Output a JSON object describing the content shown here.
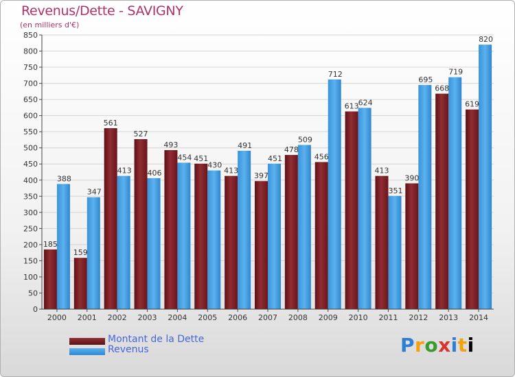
{
  "title": "Revenus/Dette - SAVIGNY",
  "subtitle": "(en milliers d'€)",
  "legend": {
    "debt_label": "Montant de la Dette",
    "revenue_label": "Revenus"
  },
  "logo": {
    "text": "Proxiti"
  },
  "colors": {
    "debt": "#7a1c24",
    "debt_light": "#8f2e33",
    "revenue": "#4aa3e6",
    "revenue_dark": "#2e86cf",
    "title": "#b0306a",
    "legend_text": "#4466dd"
  },
  "chart_data": {
    "type": "bar",
    "title": "Revenus/Dette - SAVIGNY",
    "ylabel": "(en milliers d'€)",
    "xlabel": "",
    "ylim": [
      0,
      850
    ],
    "ytick_step": 50,
    "grid": true,
    "legend_position": "bottom-left",
    "categories": [
      "2000",
      "2001",
      "2002",
      "2003",
      "2004",
      "2005",
      "2006",
      "2007",
      "2008",
      "2009",
      "2010",
      "2011",
      "2012",
      "2013",
      "2014"
    ],
    "series": [
      {
        "name": "Montant de la Dette",
        "values": [
          185,
          159,
          561,
          527,
          493,
          451,
          413,
          397,
          478,
          456,
          613,
          413,
          390,
          668,
          619
        ]
      },
      {
        "name": "Revenus",
        "values": [
          388,
          347,
          413,
          406,
          454,
          430,
          491,
          451,
          509,
          712,
          624,
          351,
          695,
          719,
          820
        ]
      }
    ]
  }
}
